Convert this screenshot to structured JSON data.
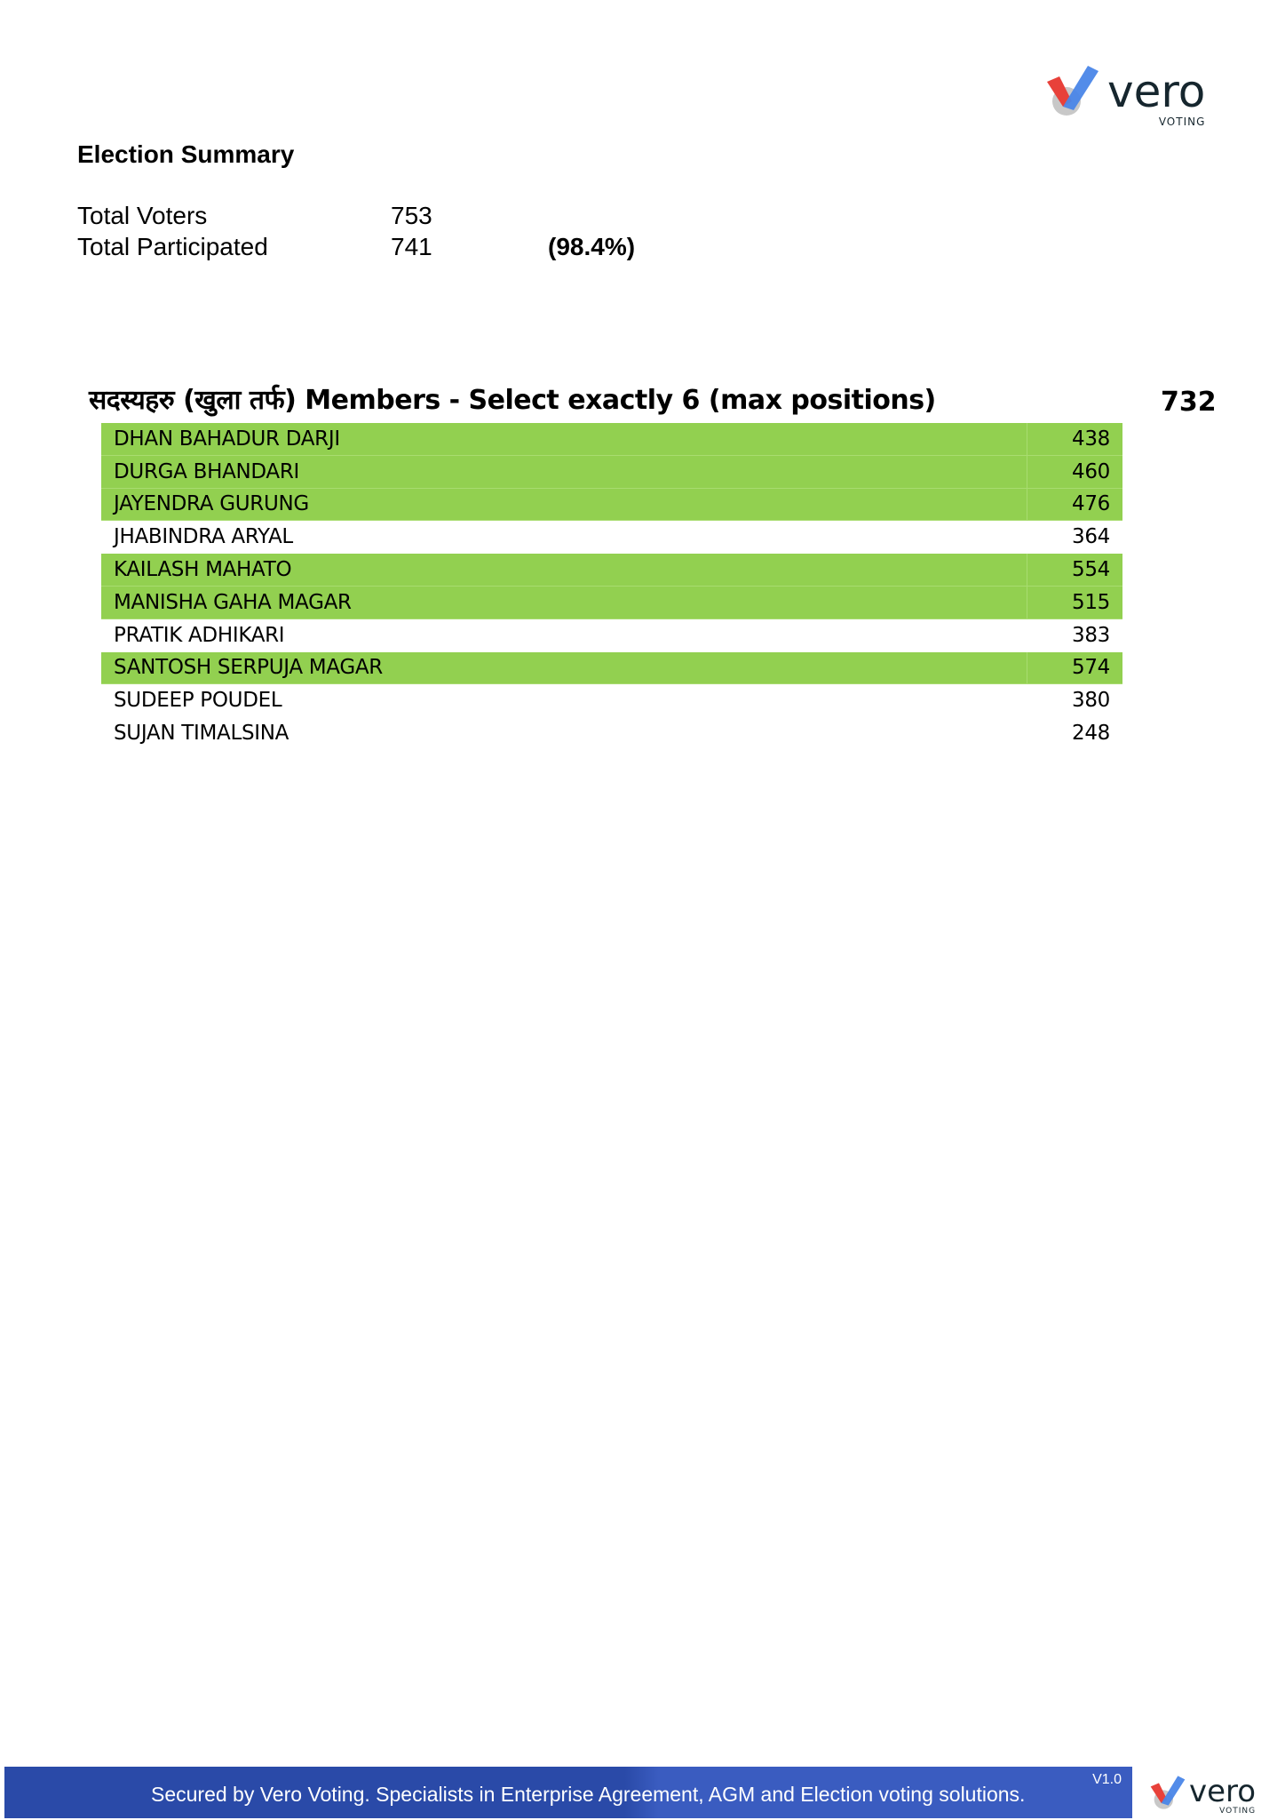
{
  "brand": {
    "name": "vero",
    "tagline": "VOTING",
    "colors": {
      "red": "#e8413a",
      "blue": "#4a86e8",
      "gray": "#c8c8c8",
      "text": "#16262e"
    }
  },
  "summary": {
    "title": "Election Summary",
    "total_voters_label": "Total Voters",
    "total_voters": "753",
    "total_participated_label": "Total Participated",
    "total_participated": "741",
    "participation_pct": "(98.4%)"
  },
  "section": {
    "title": "सदस्यहरु (खुला तर्फ) Members - Select exactly 6 (max positions)",
    "total": "732",
    "highlight_color": "#92d050",
    "candidates": [
      {
        "name": "DHAN BAHADUR DARJI",
        "votes": "438",
        "elected": true
      },
      {
        "name": "DURGA BHANDARI",
        "votes": "460",
        "elected": true
      },
      {
        "name": "JAYENDRA GURUNG",
        "votes": "476",
        "elected": true
      },
      {
        "name": "JHABINDRA ARYAL",
        "votes": "364",
        "elected": false
      },
      {
        "name": "KAILASH MAHATO",
        "votes": "554",
        "elected": true
      },
      {
        "name": "MANISHA GAHA MAGAR",
        "votes": "515",
        "elected": true
      },
      {
        "name": "PRATIK ADHIKARI",
        "votes": "383",
        "elected": false
      },
      {
        "name": "SANTOSH SERPUJA MAGAR",
        "votes": "574",
        "elected": true
      },
      {
        "name": "SUDEEP POUDEL",
        "votes": "380",
        "elected": false
      },
      {
        "name": "SUJAN TIMALSINA",
        "votes": "248",
        "elected": false
      }
    ]
  },
  "footer": {
    "text": "Secured by Vero Voting. Specialists in Enterprise Agreement, AGM and Election voting solutions.",
    "version": "V1.0"
  }
}
